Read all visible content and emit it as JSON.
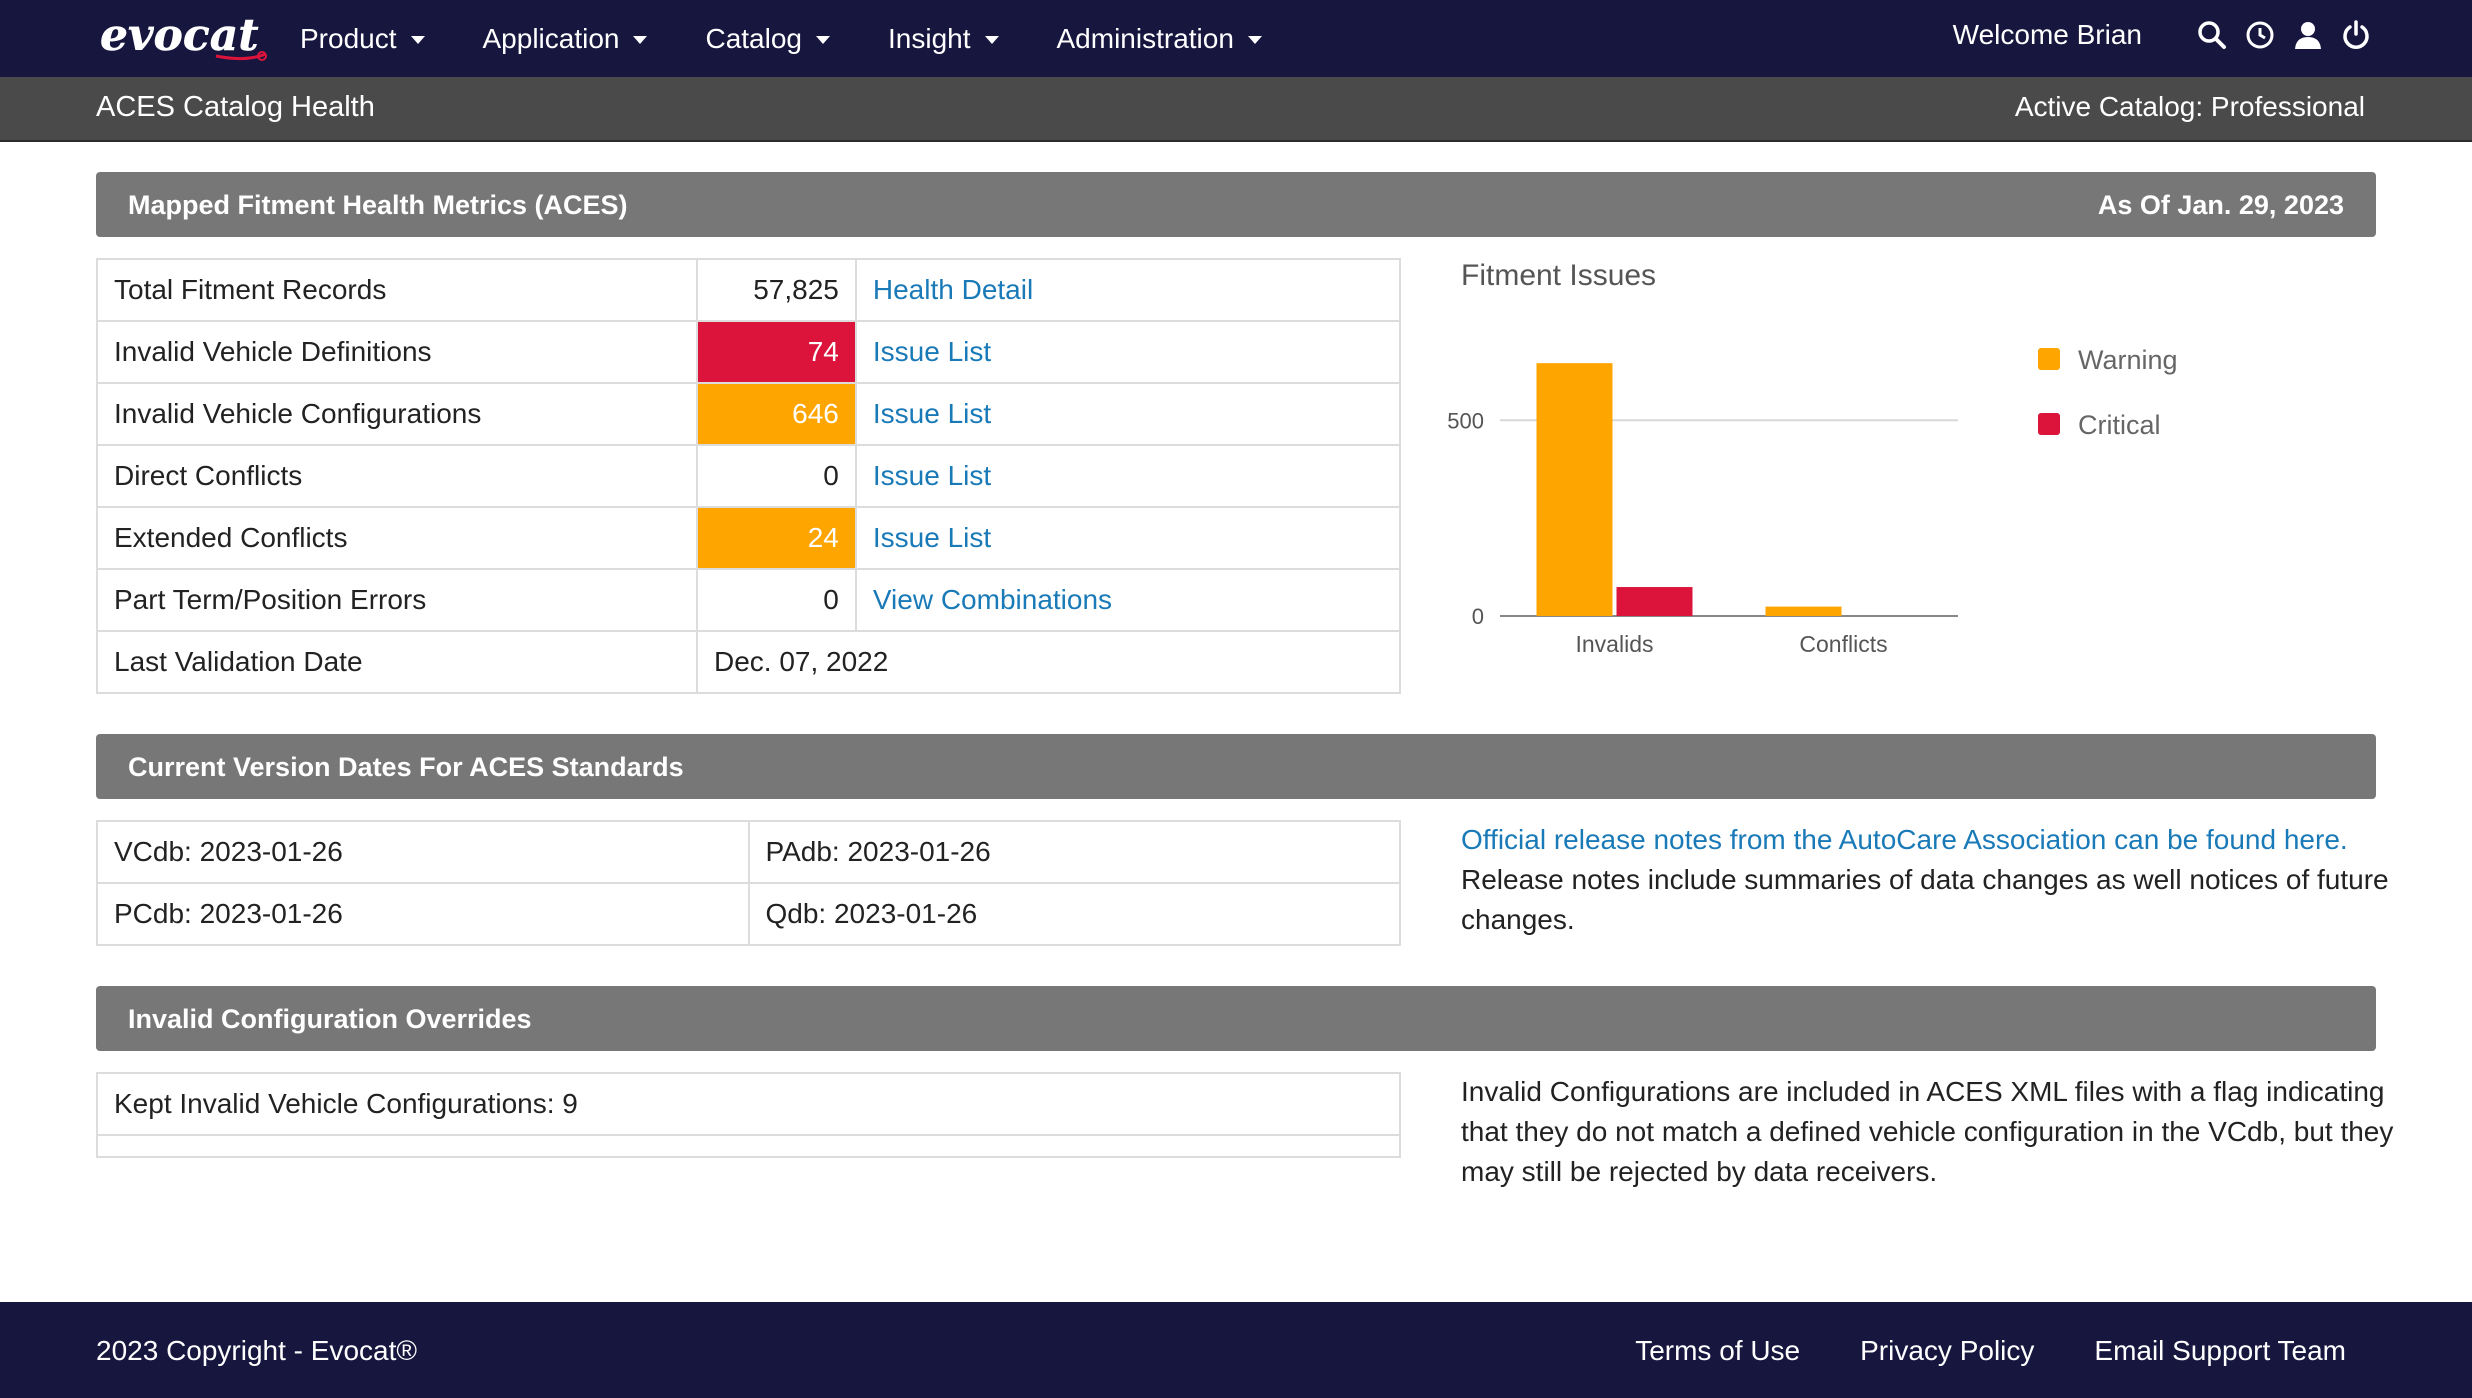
{
  "brand": {
    "logo_text": "evocat"
  },
  "nav": {
    "items": [
      {
        "label": "Product"
      },
      {
        "label": "Application"
      },
      {
        "label": "Catalog"
      },
      {
        "label": "Insight"
      },
      {
        "label": "Administration"
      }
    ],
    "welcome": "Welcome Brian",
    "icons": [
      "search-icon",
      "history-icon",
      "user-icon",
      "power-icon"
    ]
  },
  "subheader": {
    "title": "ACES Catalog Health",
    "active_catalog": "Active Catalog: Professional"
  },
  "metrics_section": {
    "title": "Mapped Fitment Health Metrics (ACES)",
    "as_of": "As Of Jan. 29, 2023"
  },
  "metrics": {
    "rows": [
      {
        "label": "Total Fitment Records",
        "value": "57,825",
        "link": "Health Detail",
        "status": "none"
      },
      {
        "label": "Invalid Vehicle Definitions",
        "value": "74",
        "link": "Issue List",
        "status": "critical"
      },
      {
        "label": "Invalid Vehicle Configurations",
        "value": "646",
        "link": "Issue List",
        "status": "warning"
      },
      {
        "label": "Direct Conflicts",
        "value": "0",
        "link": "Issue List",
        "status": "none"
      },
      {
        "label": "Extended Conflicts",
        "value": "24",
        "link": "Issue List",
        "status": "warning"
      },
      {
        "label": "Part Term/Position Errors",
        "value": "0",
        "link": "View Combinations",
        "status": "none"
      }
    ],
    "last_validation": {
      "label": "Last Validation Date",
      "value": "Dec. 07, 2022"
    }
  },
  "colors": {
    "nav_bg": "#16163f",
    "critical": "#dc143c",
    "warning": "#ffa500",
    "link": "#1a7ab8",
    "section_bar": "#777777"
  },
  "chart_data": {
    "type": "bar",
    "title": "Fitment Issues",
    "categories": [
      "Invalids",
      "Conflicts"
    ],
    "series": [
      {
        "name": "Warning",
        "color": "#ffa500",
        "values": [
          646,
          24
        ]
      },
      {
        "name": "Critical",
        "color": "#dc143c",
        "values": [
          74,
          0
        ]
      }
    ],
    "yticks": [
      0,
      500
    ],
    "ylim": [
      0,
      700
    ],
    "grid": true,
    "legend": "right"
  },
  "versions_section": {
    "title": "Current Version Dates For ACES Standards"
  },
  "versions": {
    "rows": [
      [
        "VCdb: 2023-01-26",
        "PAdb: 2023-01-26"
      ],
      [
        "PCdb: 2023-01-26",
        "Qdb: 2023-01-26"
      ]
    ],
    "release_link": "Official release notes from the AutoCare Association can be found here.",
    "release_note": "Release notes include summaries of data changes as well notices of future changes."
  },
  "overrides_section": {
    "title": "Invalid Configuration Overrides"
  },
  "overrides": {
    "kept": "Kept Invalid Vehicle Configurations: 9",
    "note": "Invalid Configurations are included in ACES XML files with a flag indicating that they do not match a defined vehicle configuration in the VCdb, but they may still be rejected by data receivers."
  },
  "footer": {
    "copyright": "2023 Copyright - Evocat®",
    "links": [
      "Terms of Use",
      "Privacy Policy",
      "Email Support Team"
    ]
  }
}
